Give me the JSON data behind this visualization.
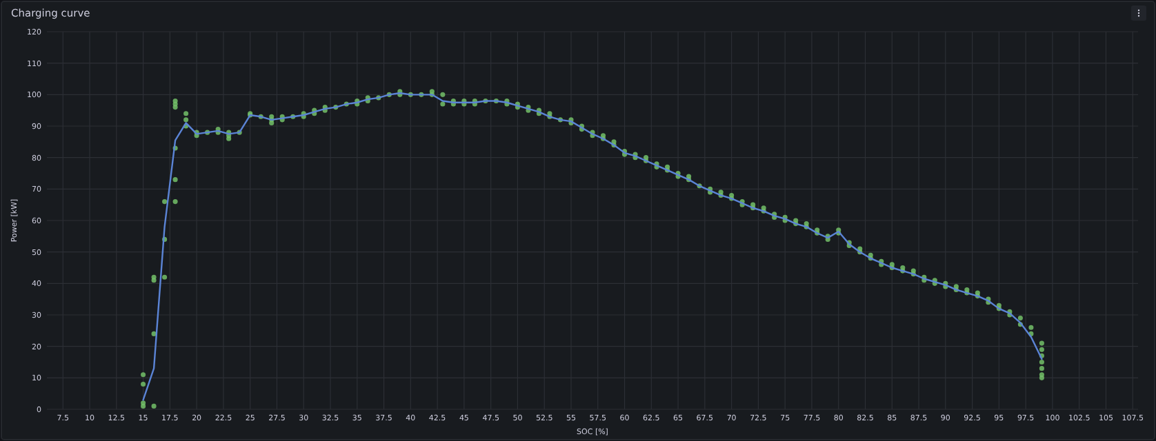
{
  "chart_data": {
    "type": "line",
    "title": "Charging curve",
    "xlabel": "SOC [%]",
    "ylabel": "Power [kW]",
    "xlim": [
      6,
      108
    ],
    "xticks": [
      7.5,
      10,
      12.5,
      15,
      17.5,
      20,
      22.5,
      25,
      27.5,
      30,
      32.5,
      35,
      37.5,
      40,
      42.5,
      45,
      47.5,
      50,
      52.5,
      55,
      57.5,
      60,
      62.5,
      65,
      67.5,
      70,
      72.5,
      75,
      77.5,
      80,
      82.5,
      85,
      87.5,
      90,
      92.5,
      95,
      97.5,
      100,
      102.5,
      105,
      107.5
    ],
    "ylim": [
      0,
      120
    ],
    "yticks": [
      0,
      10,
      20,
      30,
      40,
      50,
      60,
      70,
      80,
      90,
      100,
      110,
      120
    ],
    "grid": true,
    "series": [
      {
        "type": "scatter",
        "marker": "circle",
        "color": "#73bf69",
        "x": [
          15,
          15,
          15,
          15,
          16,
          16,
          16,
          16,
          17,
          17,
          17,
          18,
          18,
          18,
          18,
          18,
          18,
          19,
          19,
          19,
          20,
          20,
          21,
          22,
          22,
          23,
          23,
          23,
          24,
          25,
          25,
          26,
          27,
          27,
          27,
          28,
          28,
          29,
          30,
          30,
          31,
          31,
          32,
          32,
          33,
          34,
          35,
          35,
          36,
          36,
          37,
          38,
          39,
          39,
          40,
          41,
          42,
          42,
          43,
          43,
          44,
          44,
          45,
          45,
          46,
          46,
          47,
          48,
          49,
          49,
          50,
          50,
          51,
          51,
          52,
          52,
          53,
          53,
          54,
          55,
          55,
          56,
          56,
          57,
          57,
          58,
          58,
          59,
          59,
          60,
          60,
          61,
          61,
          62,
          62,
          63,
          63,
          64,
          64,
          65,
          65,
          66,
          66,
          67,
          68,
          68,
          69,
          69,
          70,
          70,
          71,
          71,
          72,
          72,
          73,
          73,
          74,
          74,
          75,
          75,
          76,
          76,
          77,
          77,
          78,
          78,
          79,
          79,
          80,
          80,
          81,
          81,
          82,
          82,
          83,
          83,
          84,
          84,
          85,
          85,
          86,
          86,
          87,
          87,
          88,
          88,
          89,
          89,
          90,
          90,
          91,
          91,
          92,
          92,
          93,
          93,
          94,
          94,
          95,
          95,
          96,
          96,
          97,
          97,
          98,
          98,
          99,
          99,
          99,
          99,
          99,
          99,
          99
        ],
        "values": [
          11,
          8,
          2,
          1,
          42,
          41,
          24,
          1,
          66,
          54,
          42,
          98,
          97,
          96,
          83,
          73,
          66,
          94,
          92,
          90,
          88,
          87,
          88,
          89,
          88,
          88,
          87,
          86,
          88,
          94,
          93.5,
          93,
          93,
          92,
          91,
          93,
          92,
          93,
          94,
          93,
          95,
          94,
          96,
          95,
          96,
          97,
          98,
          97,
          99,
          98,
          99,
          100,
          101,
          100,
          100,
          100,
          101,
          100,
          100,
          97,
          98,
          97,
          98,
          97,
          98,
          97,
          98,
          98,
          98,
          97,
          97,
          96,
          96,
          95,
          95,
          94,
          94,
          93,
          92,
          92,
          91,
          90,
          89,
          88,
          87,
          87,
          86,
          85,
          84,
          82,
          81,
          81,
          80,
          80,
          79,
          78,
          77,
          77,
          76,
          75,
          74,
          74,
          73,
          71,
          70,
          69,
          69,
          68,
          68,
          67,
          66,
          65,
          65,
          64,
          64,
          63,
          62,
          61,
          61,
          60,
          60,
          59,
          59,
          58,
          57,
          56,
          55,
          54,
          57,
          56,
          53,
          52,
          51,
          50,
          49,
          48,
          47,
          46,
          46,
          45,
          45,
          44,
          44,
          43,
          42,
          41,
          41,
          40,
          40,
          39,
          39,
          38,
          38,
          37,
          37,
          36,
          35,
          34,
          33,
          32,
          31,
          30,
          29,
          27,
          26,
          24,
          21,
          19,
          17,
          15,
          13,
          11,
          10
        ]
      },
      {
        "type": "line",
        "marker": "none",
        "line_style": "solid",
        "color": "#5b84d6",
        "x": [
          15,
          16,
          17,
          18,
          19,
          20,
          21,
          22,
          23,
          24,
          25,
          26,
          27,
          28,
          29,
          30,
          31,
          32,
          33,
          34,
          35,
          36,
          37,
          38,
          39,
          40,
          41,
          42,
          43,
          44,
          45,
          46,
          47,
          48,
          49,
          50,
          51,
          52,
          53,
          54,
          55,
          56,
          57,
          58,
          59,
          60,
          61,
          62,
          63,
          64,
          65,
          66,
          67,
          68,
          69,
          70,
          71,
          72,
          73,
          74,
          75,
          76,
          77,
          78,
          79,
          80,
          81,
          82,
          83,
          84,
          85,
          86,
          87,
          88,
          89,
          90,
          91,
          92,
          93,
          94,
          95,
          96,
          97,
          98,
          99
        ],
        "values": [
          3,
          13,
          58,
          85.5,
          91,
          87.5,
          88,
          88.5,
          87.5,
          88,
          93.5,
          93,
          92,
          92.5,
          93,
          93.5,
          94.5,
          95.5,
          96,
          97,
          97.5,
          98.5,
          99,
          100,
          100.5,
          100,
          100,
          100,
          98,
          97.5,
          97.5,
          97.5,
          98,
          98,
          97.5,
          96.5,
          95.5,
          94.5,
          93,
          92,
          91.5,
          89.5,
          87.5,
          86,
          84,
          81.5,
          80.5,
          79,
          77.5,
          76,
          74.5,
          73,
          71,
          69.5,
          68,
          67,
          65.5,
          64,
          63,
          61.5,
          60.5,
          59,
          58,
          56,
          54.5,
          56.5,
          52.5,
          50,
          48,
          46.5,
          45,
          44,
          43,
          41.5,
          40.5,
          39.5,
          38,
          37,
          36,
          34.5,
          32,
          30.5,
          27.5,
          23,
          16
        ]
      }
    ]
  }
}
